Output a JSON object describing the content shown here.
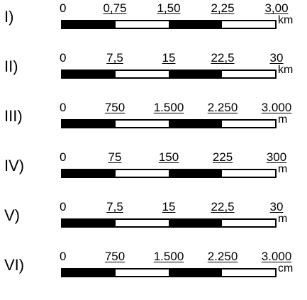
{
  "scales": [
    {
      "label": "I)",
      "ticks": [
        "0",
        "0,75",
        "1,50",
        "2,25",
        "3,00"
      ],
      "unit": "km",
      "segments": [
        "black",
        "white",
        "black",
        "white"
      ]
    },
    {
      "label": "II)",
      "ticks": [
        "0",
        "7,5",
        "15",
        "22,5",
        "30"
      ],
      "unit": "km",
      "segments": [
        "black",
        "white",
        "black",
        "white"
      ]
    },
    {
      "label": "III)",
      "ticks": [
        "0",
        "750",
        "1.500",
        "2.250",
        "3.000"
      ],
      "unit": "m",
      "segments": [
        "black",
        "white",
        "black",
        "white"
      ]
    },
    {
      "label": "IV)",
      "ticks": [
        "0",
        "75",
        "150",
        "225",
        "300"
      ],
      "unit": "m",
      "segments": [
        "black",
        "white",
        "black",
        "white"
      ]
    },
    {
      "label": "V)",
      "ticks": [
        "0",
        "7,5",
        "15",
        "22,5",
        "30"
      ],
      "unit": "m",
      "segments": [
        "black",
        "white",
        "black",
        "white"
      ]
    },
    {
      "label": "VI)",
      "ticks": [
        "0",
        "750",
        "1.500",
        "2.250",
        "3.000"
      ],
      "unit": "cm",
      "segments": [
        "black",
        "white",
        "black",
        "white"
      ]
    }
  ],
  "colors": {
    "bar_dark": "#000000",
    "bar_light": "#ffffff",
    "background": "#ffffff"
  }
}
